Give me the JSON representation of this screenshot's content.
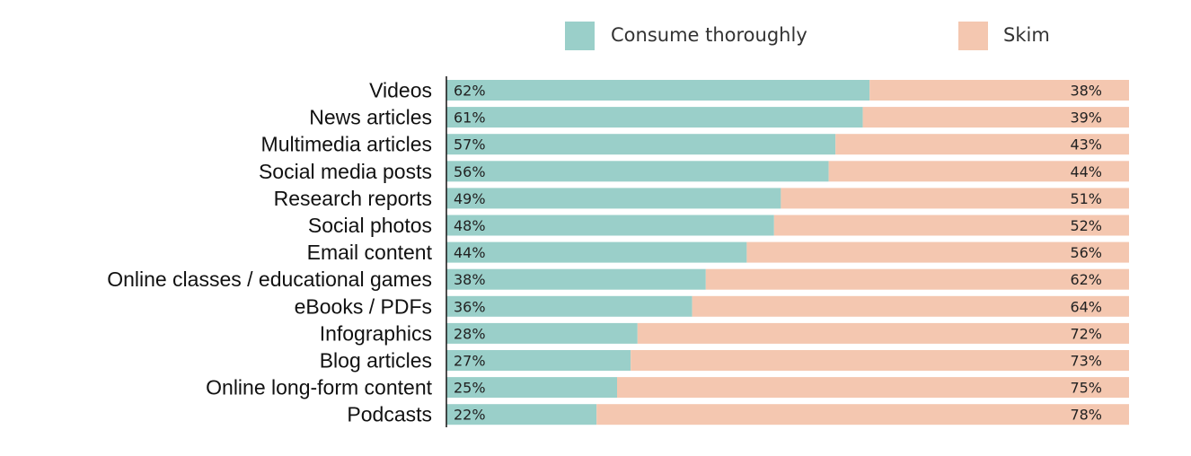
{
  "chart_data": {
    "type": "bar",
    "orientation": "horizontal",
    "stacked": true,
    "percent_stacked": true,
    "title": "",
    "xlabel": "",
    "ylabel": "",
    "xlim": [
      0,
      100
    ],
    "grid": false,
    "legend_position": "top-right",
    "categories": [
      "Videos",
      "News articles",
      "Multimedia articles",
      "Social media posts",
      "Research reports",
      "Social photos",
      "Email content",
      "Online classes / educational games",
      "eBooks / PDFs",
      "Infographics",
      "Blog articles",
      "Online long-form content",
      "Podcasts"
    ],
    "series": [
      {
        "name": "Consume thoroughly",
        "color": "#9acfc9",
        "values": [
          62,
          61,
          57,
          56,
          49,
          48,
          44,
          38,
          36,
          28,
          27,
          25,
          22
        ],
        "labels": [
          "62%",
          "61%",
          "57%",
          "56%",
          "49%",
          "48%",
          "44%",
          "38%",
          "36%",
          "28%",
          "27%",
          "25%",
          "22%"
        ]
      },
      {
        "name": "Skim",
        "color": "#f4c7b0",
        "values": [
          38,
          39,
          43,
          44,
          51,
          52,
          56,
          62,
          64,
          72,
          73,
          75,
          78
        ],
        "labels": [
          "38%",
          "39%",
          "43%",
          "44%",
          "51%",
          "52%",
          "56%",
          "62%",
          "64%",
          "72%",
          "73%",
          "75%",
          "78%"
        ]
      }
    ]
  }
}
